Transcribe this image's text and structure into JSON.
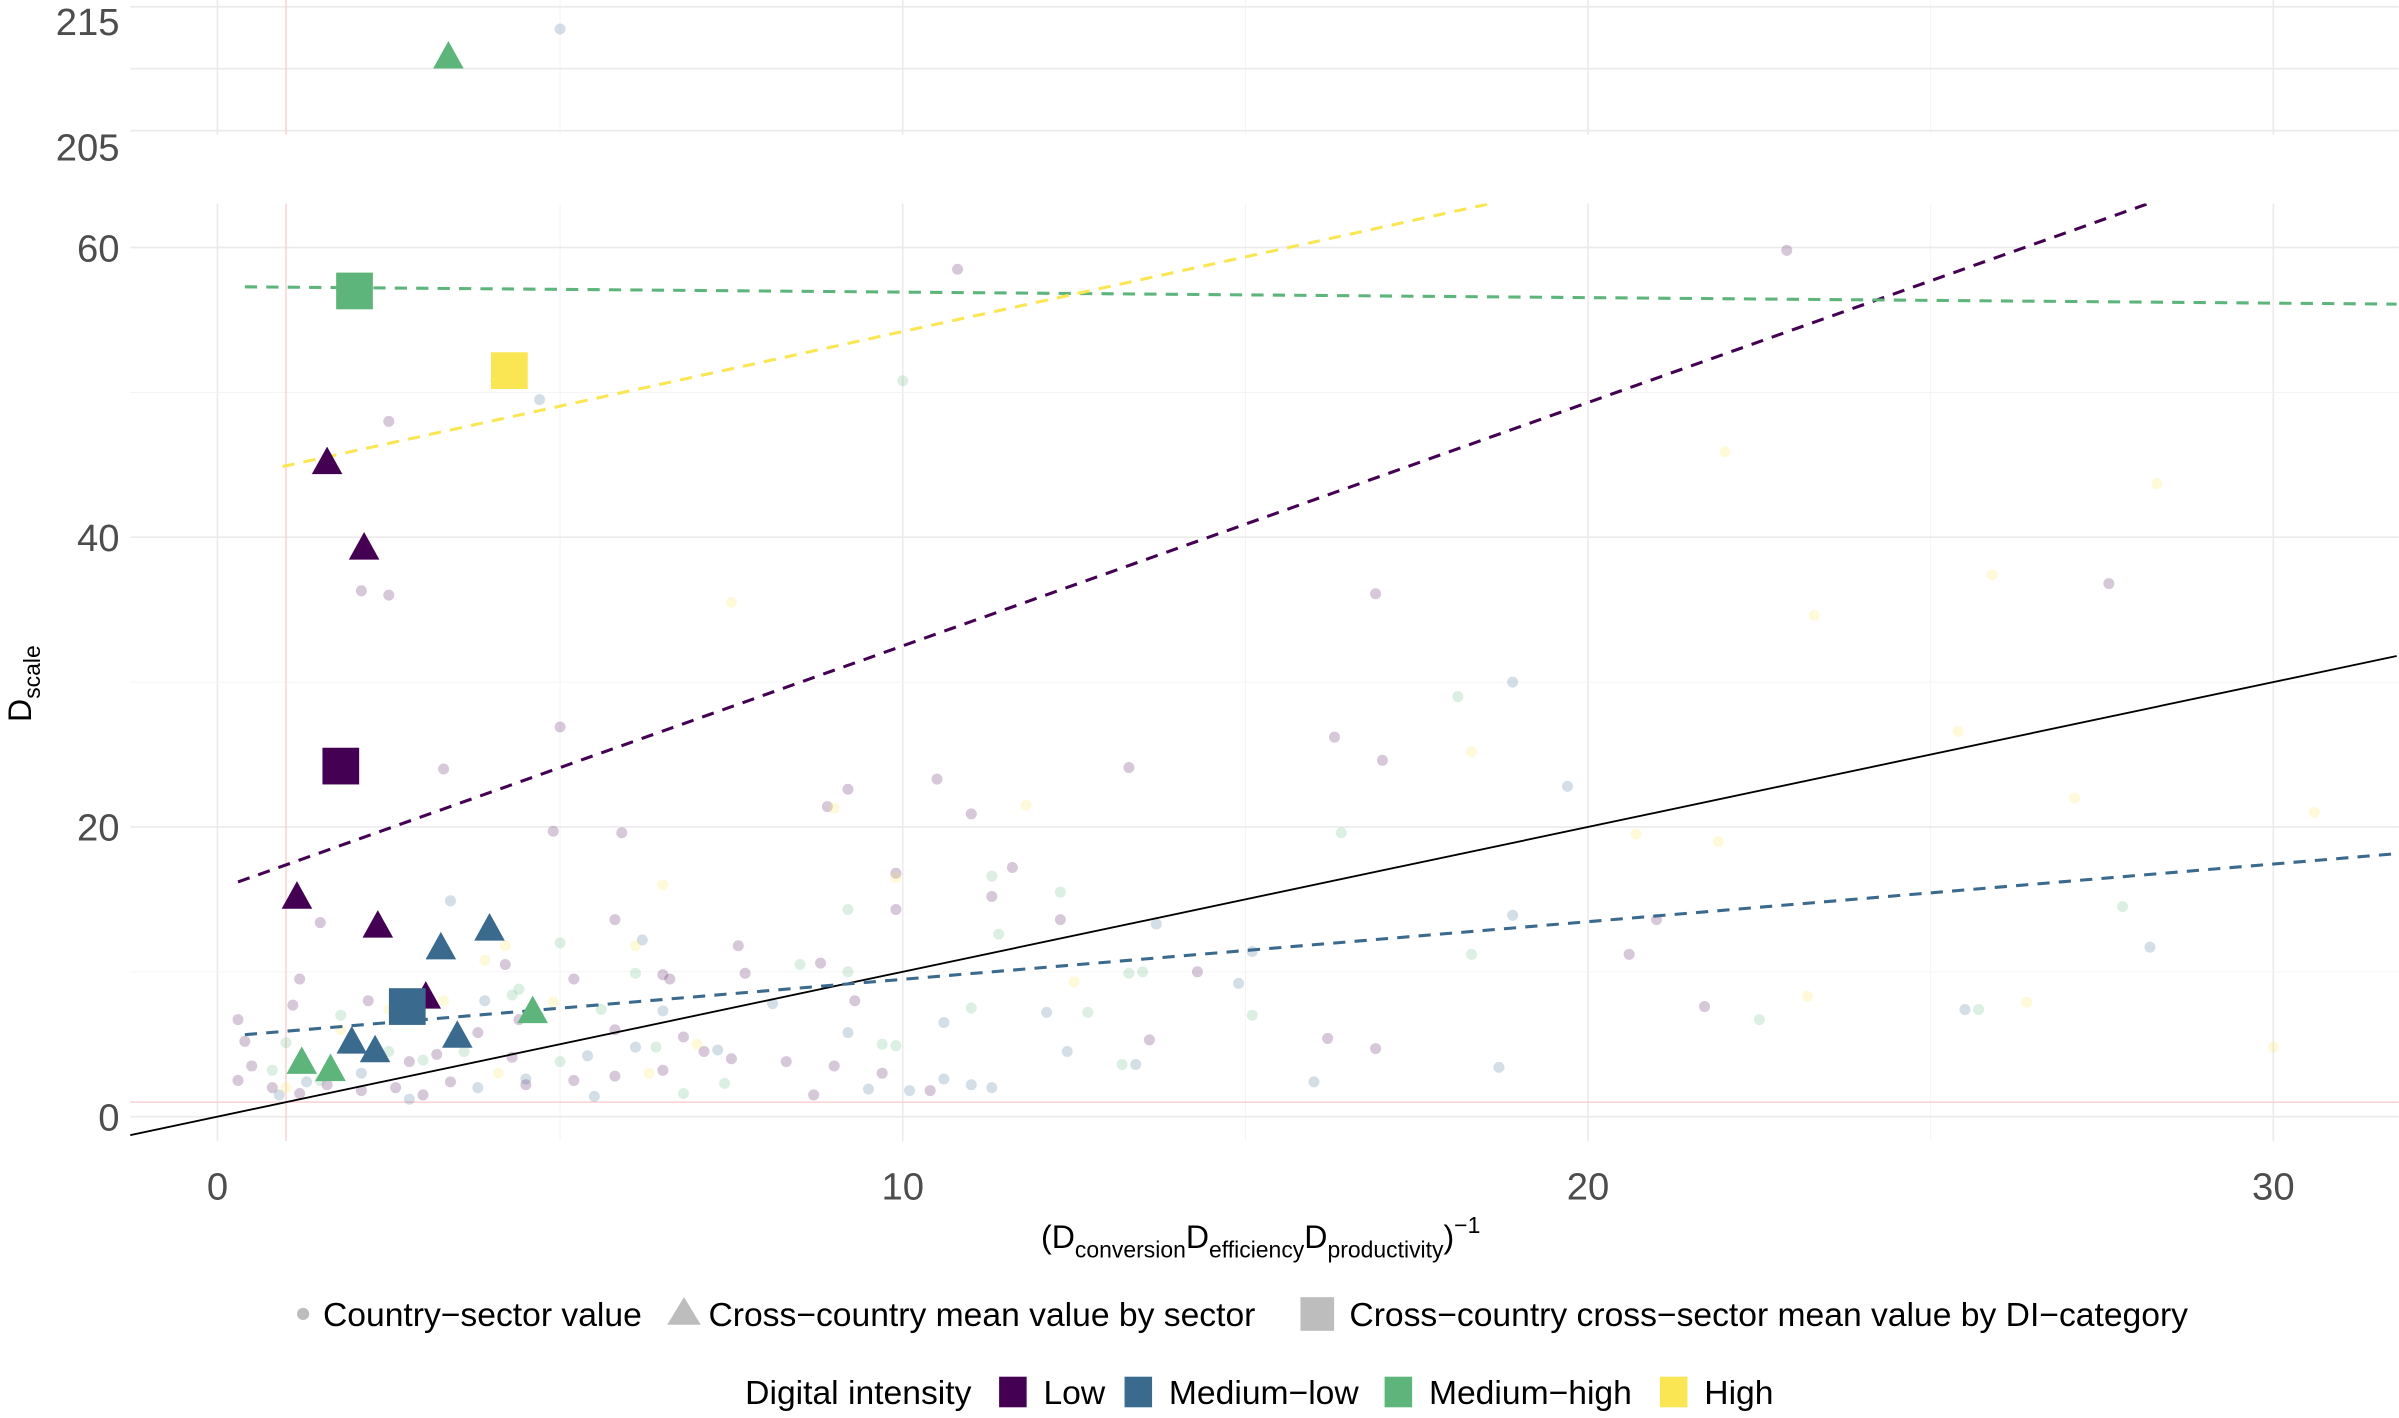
{
  "chart_data": {
    "type": "scatter",
    "title": "",
    "xlabel": {
      "open": "(D",
      "sub1": "conversion",
      "d2": "D",
      "sub2": "efficiency",
      "d3": "D",
      "sub3": "productivity",
      "close": ")",
      "sup": "−1"
    },
    "ylabel": {
      "main": "D",
      "sub": "scale"
    },
    "xlim": [
      -1.3,
      31.8
    ],
    "ylim_lower": [
      -1.5,
      63.5
    ],
    "ylim_upper": [
      204.8,
      215.5
    ],
    "x_ticks": [
      "0",
      "10",
      "20",
      "30"
    ],
    "x_tick_values": [
      0,
      10,
      20,
      30
    ],
    "y_ticks_lower": [
      "0",
      "20",
      "40",
      "60"
    ],
    "y_tick_values_lower": [
      0,
      20,
      40,
      60
    ],
    "y_ticks_upper": [
      "205",
      "215"
    ],
    "y_tick_values_upper": [
      205,
      215
    ],
    "grid": true,
    "reference_lines": {
      "x": 1,
      "y": 1,
      "color": "#f8c8c8"
    },
    "colors": {
      "Low": "#440154",
      "Medium-low": "#3b6a8f",
      "Medium-high": "#5db57b",
      "High": "#f9e652"
    },
    "identity_line": {
      "slope": 1,
      "intercept": 0,
      "color": "#000000"
    },
    "fit_lines": [
      {
        "category": "Low",
        "slope": 1.68,
        "intercept": 15.7,
        "x_range": [
          0.3,
          31.8
        ]
      },
      {
        "category": "Medium-low",
        "slope": 0.398,
        "intercept": 5.5,
        "x_range": [
          0.4,
          31.8
        ]
      },
      {
        "category": "Medium-high",
        "slope": -0.038,
        "intercept": 57.3,
        "x_range": [
          0.4,
          31.8
        ]
      },
      {
        "category": "High",
        "slope": 1.03,
        "intercept": 43.9,
        "x_range": [
          0.95,
          31.8
        ]
      }
    ],
    "sector_means": [
      {
        "category": "Low",
        "points": [
          [
            1.6,
            45.2
          ],
          [
            2.14,
            39.3
          ],
          [
            1.16,
            15.2
          ],
          [
            2.34,
            13.2
          ],
          [
            3.04,
            8.3
          ]
        ]
      },
      {
        "category": "Medium-low",
        "points": [
          [
            1.96,
            5.2
          ],
          [
            2.3,
            4.6
          ],
          [
            3.26,
            11.7
          ],
          [
            3.97,
            13.0
          ],
          [
            3.5,
            5.6
          ]
        ]
      },
      {
        "category": "Medium-high",
        "points": [
          [
            1.23,
            3.8
          ],
          [
            1.65,
            3.3
          ],
          [
            4.6,
            7.3
          ],
          [
            3.37,
            211.0
          ]
        ]
      },
      {
        "category": "High",
        "points": [
          [
            4.2,
            51.6
          ]
        ]
      }
    ],
    "category_means": [
      {
        "category": "Low",
        "x": 1.8,
        "y": 24.2
      },
      {
        "category": "Medium-low",
        "x": 2.77,
        "y": 7.6
      },
      {
        "category": "Medium-high",
        "x": 2.0,
        "y": 57.0
      },
      {
        "category": "High",
        "x": 4.26,
        "y": 51.5
      }
    ],
    "country_sector_values": [
      {
        "category": "Low",
        "points": [
          [
            10.8,
            58.5
          ],
          [
            22.9,
            59.8
          ],
          [
            2.5,
            48
          ],
          [
            2.1,
            36.3
          ],
          [
            2.5,
            36
          ],
          [
            3.3,
            24
          ],
          [
            5,
            26.9
          ],
          [
            13.3,
            24.1
          ],
          [
            10.5,
            23.3
          ],
          [
            16.9,
            36.1
          ],
          [
            27.6,
            36.8
          ],
          [
            16.3,
            26.2
          ],
          [
            17.0,
            24.6
          ],
          [
            9.2,
            22.6
          ],
          [
            8.9,
            21.4
          ],
          [
            11.0,
            20.9
          ],
          [
            11.6,
            17.2
          ],
          [
            9.9,
            16.8
          ],
          [
            12.3,
            13.6
          ],
          [
            5.8,
            13.6
          ],
          [
            4.9,
            19.7
          ],
          [
            5.9,
            19.6
          ],
          [
            1.5,
            13.4
          ],
          [
            21.0,
            13.6
          ],
          [
            20.6,
            11.2
          ],
          [
            21.7,
            7.6
          ],
          [
            16.2,
            5.4
          ],
          [
            16.9,
            4.7
          ],
          [
            14.3,
            10
          ],
          [
            13.6,
            5.3
          ],
          [
            9.3,
            8
          ],
          [
            8.8,
            10.6
          ],
          [
            7.6,
            11.8
          ],
          [
            7.7,
            9.9
          ],
          [
            6.5,
            9.8
          ],
          [
            6.6,
            9.5
          ],
          [
            5.2,
            9.5
          ],
          [
            4.2,
            10.5
          ],
          [
            3.8,
            5.8
          ],
          [
            4.4,
            6.7
          ],
          [
            5.8,
            6
          ],
          [
            6.8,
            5.5
          ],
          [
            7.1,
            4.5
          ],
          [
            7.5,
            4.0
          ],
          [
            8.3,
            3.8
          ],
          [
            9.0,
            3.5
          ],
          [
            9.7,
            3.0
          ],
          [
            10.4,
            1.8
          ],
          [
            6.5,
            3.2
          ],
          [
            5.2,
            2.5
          ],
          [
            4.5,
            2.2
          ],
          [
            2.2,
            8.0
          ],
          [
            1.2,
            9.5
          ],
          [
            1.1,
            7.7
          ],
          [
            0.3,
            6.7
          ],
          [
            0.4,
            5.2
          ],
          [
            0.5,
            3.5
          ],
          [
            0.3,
            2.5
          ],
          [
            0.8,
            2.0
          ],
          [
            1.2,
            1.6
          ],
          [
            1.6,
            2.2
          ],
          [
            2.1,
            1.8
          ],
          [
            2.6,
            2.0
          ],
          [
            3.0,
            1.5
          ],
          [
            3.4,
            2.4
          ],
          [
            2.8,
            3.8
          ],
          [
            3.2,
            4.3
          ],
          [
            4.3,
            4.1
          ],
          [
            5.8,
            2.8
          ],
          [
            8.7,
            1.5
          ],
          [
            9.9,
            14.3
          ],
          [
            11.3,
            15.2
          ]
        ]
      },
      {
        "category": "Medium-low",
        "points": [
          [
            5,
            213.2
          ],
          [
            4.7,
            49.5
          ],
          [
            18.9,
            30
          ],
          [
            19.7,
            22.8
          ],
          [
            13.7,
            13.3
          ],
          [
            18.9,
            13.9
          ],
          [
            28.2,
            11.7
          ],
          [
            14.9,
            9.2
          ],
          [
            12.1,
            7.2
          ],
          [
            10.1,
            1.8
          ],
          [
            11.3,
            2
          ],
          [
            13.4,
            3.6
          ],
          [
            12.4,
            4.5
          ],
          [
            16.0,
            2.4
          ],
          [
            18.7,
            3.4
          ],
          [
            10.6,
            2.6
          ],
          [
            9.5,
            1.9
          ],
          [
            7.3,
            4.6
          ],
          [
            6.1,
            4.8
          ],
          [
            6.5,
            7.3
          ],
          [
            5.5,
            1.4
          ],
          [
            4.5,
            2.6
          ],
          [
            3.4,
            14.9
          ],
          [
            3.9,
            8
          ],
          [
            5.4,
            4.2
          ],
          [
            8.1,
            7.8
          ],
          [
            9.2,
            5.8
          ],
          [
            2.1,
            3.0
          ],
          [
            1.3,
            2.4
          ],
          [
            0.9,
            1.5
          ],
          [
            2.8,
            1.2
          ],
          [
            3.8,
            2.0
          ],
          [
            6.2,
            12.2
          ],
          [
            10.6,
            6.5
          ],
          [
            15.1,
            11.4
          ],
          [
            25.5,
            7.4
          ],
          [
            11.0,
            2.2
          ]
        ]
      },
      {
        "category": "Medium-high",
        "points": [
          [
            10.0,
            50.8
          ],
          [
            18.1,
            29.0
          ],
          [
            16.4,
            19.6
          ],
          [
            12.3,
            15.5
          ],
          [
            11.3,
            16.6
          ],
          [
            9.2,
            14.3
          ],
          [
            9.2,
            10.0
          ],
          [
            11.4,
            12.6
          ],
          [
            13.5,
            10
          ],
          [
            13.3,
            9.9
          ],
          [
            15.1,
            7.0
          ],
          [
            12.7,
            7.2
          ],
          [
            11.0,
            7.5
          ],
          [
            9.9,
            4.9
          ],
          [
            9.7,
            5.0
          ],
          [
            8.5,
            10.5
          ],
          [
            6.1,
            9.9
          ],
          [
            5.6,
            7.4
          ],
          [
            5.0,
            12.0
          ],
          [
            4.4,
            8.8
          ],
          [
            3.6,
            4.5
          ],
          [
            4.3,
            8.4
          ],
          [
            1.8,
            7.0
          ],
          [
            1.0,
            5.1
          ],
          [
            0.8,
            3.2
          ],
          [
            1.5,
            2.5
          ],
          [
            2.5,
            4.5
          ],
          [
            3.0,
            3.9
          ],
          [
            6.4,
            4.8
          ],
          [
            6.8,
            1.6
          ],
          [
            7.4,
            2.3
          ],
          [
            13.2,
            3.6
          ],
          [
            22.5,
            6.7
          ],
          [
            25.7,
            7.4
          ],
          [
            27.8,
            14.5
          ],
          [
            18.3,
            11.2
          ],
          [
            5.0,
            3.8
          ]
        ]
      },
      {
        "category": "High",
        "points": [
          [
            22.0,
            45.9
          ],
          [
            28.3,
            43.7
          ],
          [
            7.5,
            35.5
          ],
          [
            23.3,
            34.6
          ],
          [
            25.9,
            37.4
          ],
          [
            18.3,
            25.2
          ],
          [
            25.4,
            26.6
          ],
          [
            27.1,
            22
          ],
          [
            30.6,
            21
          ],
          [
            21.9,
            19
          ],
          [
            11.8,
            21.5
          ],
          [
            20.7,
            19.5
          ],
          [
            9.0,
            21.3
          ],
          [
            6.5,
            16
          ],
          [
            9.9,
            16.5
          ],
          [
            4.2,
            11.8
          ],
          [
            3.9,
            10.8
          ],
          [
            3.3,
            8.0
          ],
          [
            4.9,
            7.9
          ],
          [
            6.1,
            11.8
          ],
          [
            7.0,
            5.0
          ],
          [
            12.5,
            9.3
          ],
          [
            23.2,
            8.3
          ],
          [
            26.4,
            7.9
          ],
          [
            30.0,
            4.8
          ],
          [
            2.5,
            7.4
          ],
          [
            1.8,
            6.0
          ],
          [
            1.0,
            2.0
          ],
          [
            4.1,
            3.0
          ],
          [
            6.3,
            3.0
          ]
        ]
      }
    ],
    "legend_shapes": {
      "placement": "bottom",
      "items": [
        "Country−sector value",
        "Cross−country mean value by sector",
        "Cross−country cross−sector mean value by DI−category"
      ]
    },
    "legend_colors": {
      "placement": "bottom",
      "title": "Digital intensity",
      "items": [
        "Low",
        "Medium−low",
        "Medium−high",
        "High"
      ]
    }
  }
}
